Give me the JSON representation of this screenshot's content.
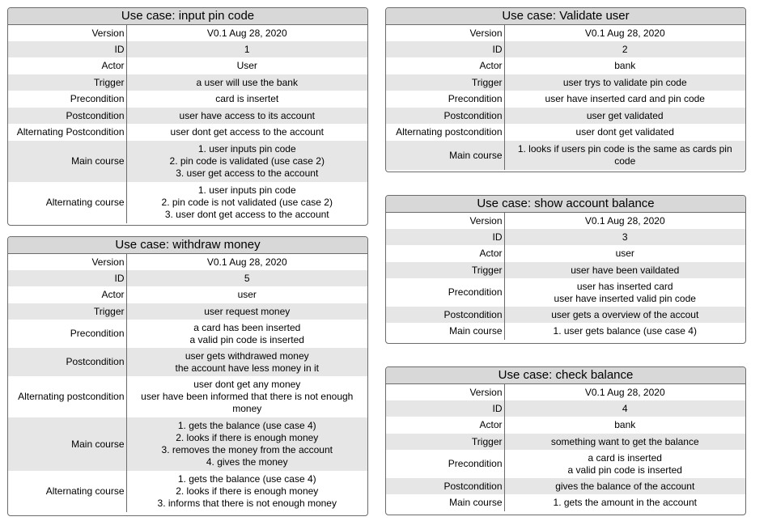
{
  "cards": [
    {
      "title": "Use case: input pin code",
      "rows": [
        {
          "key": "Version",
          "value": "V0.1 Aug 28, 2020"
        },
        {
          "key": "ID",
          "value": "1"
        },
        {
          "key": "Actor",
          "value": "User"
        },
        {
          "key": "Trigger",
          "value": "a user will use the bank"
        },
        {
          "key": "Precondition",
          "value": "card is insertet"
        },
        {
          "key": "Postcondition",
          "value": "user have access to its account"
        },
        {
          "key": "Alternating Postcondition",
          "value": "user dont get access to the account"
        },
        {
          "key": "Main course",
          "value": "1. user inputs pin code\n2. pin code is validated (use case 2)\n3. user get access to the account"
        },
        {
          "key": "Alternating course",
          "value": "1. user inputs pin code\n2. pin code is not validated (use case 2)\n3. user dont get access to the account"
        }
      ]
    },
    {
      "title": "Use case: Validate user",
      "rows": [
        {
          "key": "Version",
          "value": "V0.1 Aug 28, 2020"
        },
        {
          "key": "ID",
          "value": "2"
        },
        {
          "key": "Actor",
          "value": "bank"
        },
        {
          "key": "Trigger",
          "value": "user trys to validate pin code"
        },
        {
          "key": "Precondition",
          "value": "user have inserted card and pin code"
        },
        {
          "key": "Postcondition",
          "value": "user get validated"
        },
        {
          "key": "Alternating postcondition",
          "value": "user dont get validated"
        },
        {
          "key": "Main course",
          "value": "1. looks if users pin code is the same as cards pin\ncode"
        }
      ]
    },
    {
      "title": "Use case: withdraw money",
      "rows": [
        {
          "key": "Version",
          "value": "V0.1 Aug 28, 2020"
        },
        {
          "key": "ID",
          "value": "5"
        },
        {
          "key": "Actor",
          "value": "user"
        },
        {
          "key": "Trigger",
          "value": "user request money"
        },
        {
          "key": "Precondition",
          "value": "a card has been inserted\na valid pin code is inserted"
        },
        {
          "key": "Postcondition",
          "value": "user gets withdrawed money\nthe account have less money in it"
        },
        {
          "key": "Alternating postcondition",
          "value": "user dont get any money\nuser have been informed that there is not enough\nmoney"
        },
        {
          "key": "Main course",
          "value": "1. gets the balance (use case 4)\n2. looks if there is enough money\n3. removes the money from the account\n4. gives the money"
        },
        {
          "key": "Alternating course",
          "value": "1. gets the balance (use case 4)\n2. looks if there is enough money\n3. informs that there is not enough money"
        }
      ]
    },
    {
      "title": "Use case: show account balance",
      "rows": [
        {
          "key": "Version",
          "value": "V0.1 Aug 28, 2020"
        },
        {
          "key": "ID",
          "value": "3"
        },
        {
          "key": "Actor",
          "value": "user"
        },
        {
          "key": "Trigger",
          "value": "user have been vaildated"
        },
        {
          "key": "Precondition",
          "value": "user has inserted card\nuser have inserted valid pin code"
        },
        {
          "key": "Postcondition",
          "value": "user gets a overview of the accout"
        },
        {
          "key": "Main course",
          "value": "1. user gets balance (use case 4)"
        }
      ]
    },
    {
      "title": "Use case: check balance",
      "rows": [
        {
          "key": "Version",
          "value": "V0.1 Aug 28, 2020"
        },
        {
          "key": "ID",
          "value": "4"
        },
        {
          "key": "Actor",
          "value": "bank"
        },
        {
          "key": "Trigger",
          "value": "something want to get the balance"
        },
        {
          "key": "Precondition",
          "value": "a card is inserted\na valid pin code is inserted"
        },
        {
          "key": "Postcondition",
          "value": "gives the balance of the account"
        },
        {
          "key": "Main course",
          "value": "1. gets the amount in the account"
        }
      ]
    }
  ]
}
